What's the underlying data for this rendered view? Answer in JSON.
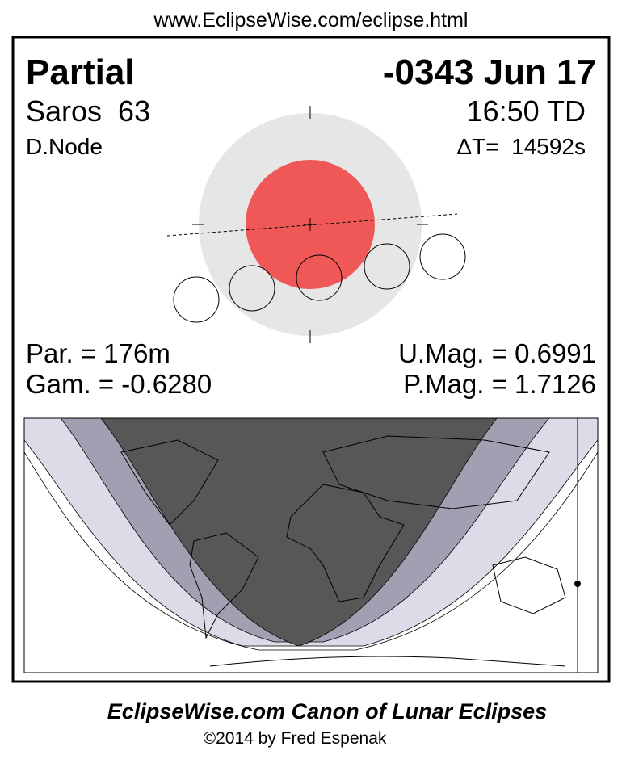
{
  "header": {
    "url": "www.EclipseWise.com/eclipse.html"
  },
  "eclipse": {
    "type": "Partial",
    "date": "-0343 Jun 17",
    "saros": "Saros  63",
    "time": "16:50 TD",
    "node": "D.Node",
    "delta_t": "ΔT=  14592s",
    "duration": "Par. = 176m",
    "umbral_mag": "U.Mag. = 0.6991",
    "gamma": "Gam. = -0.6280",
    "penumbral_mag": "P.Mag. = 1.7126"
  },
  "footer": {
    "title": "EclipseWise.com Canon of Lunar Eclipses",
    "credit": "©2014 by Fred Espenak"
  }
}
